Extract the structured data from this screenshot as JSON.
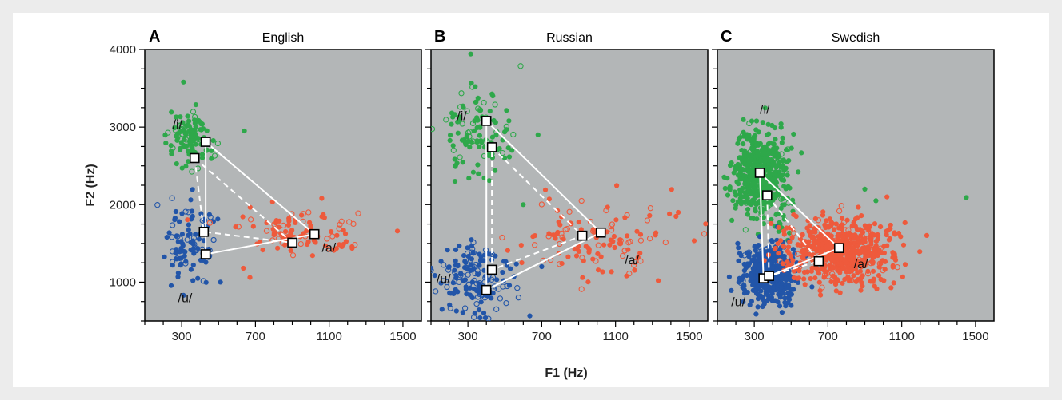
{
  "chart_data": {
    "type": "scatter",
    "shared": {
      "xlabel": "F1 (Hz)",
      "ylabel": "F2 (Hz)",
      "xlim": [
        100,
        1600
      ],
      "ylim": [
        500,
        4000
      ],
      "x_tick_labels": [
        "300",
        "700",
        "1100",
        "1500"
      ],
      "x_tick_values": [
        300,
        700,
        1100,
        1500
      ],
      "x_minor_ticks": [
        100,
        200,
        300,
        400,
        500,
        600,
        700,
        800,
        900,
        1000,
        1100,
        1200,
        1300,
        1400,
        1500
      ],
      "y_tick_labels": [
        "1000",
        "2000",
        "3000",
        "4000"
      ],
      "y_tick_values": [
        1000,
        2000,
        3000,
        4000
      ],
      "y_minor_ticks": [
        500,
        750,
        1000,
        1250,
        1500,
        1750,
        2000,
        2250,
        2500,
        2750,
        3000,
        3250,
        3500,
        3750,
        4000
      ],
      "colors": {
        "i": "#2ea84a",
        "u": "#2255a8",
        "a": "#ee5a3c"
      },
      "grid": false,
      "background": "#b3b6b7"
    },
    "panels": [
      {
        "letter": "A",
        "title": "English",
        "vowel_labels": [
          {
            "text": "/i/",
            "x": 250,
            "y": 2980
          },
          {
            "text": "/u/",
            "x": 280,
            "y": 740
          },
          {
            "text": "/a/",
            "x": 1060,
            "y": 1390
          }
        ],
        "clusters": [
          {
            "vowel": "i",
            "count": 110,
            "filled_ratio": 0.75,
            "mean": [
              340,
              2820
            ],
            "sd": [
              60,
              190
            ],
            "outliers": [
              [
                310,
                3580
              ],
              [
                640,
                2950
              ],
              [
                270,
                3130
              ]
            ]
          },
          {
            "vowel": "u",
            "count": 100,
            "filled_ratio": 0.7,
            "mean": [
              360,
              1500
            ],
            "sd": [
              65,
              260
            ],
            "outliers": [
              [
                310,
                830
              ],
              [
                270,
                1300
              ],
              [
                510,
                1000
              ]
            ]
          },
          {
            "vowel": "a",
            "count": 100,
            "filled_ratio": 0.7,
            "mean": [
              930,
              1600
            ],
            "sd": [
              150,
              140
            ],
            "outliers": [
              [
                1470,
                1660
              ],
              [
                670,
                1060
              ],
              [
                1060,
                2080
              ]
            ]
          }
        ],
        "means": {
          "solid": {
            "i": [
              430,
              2810
            ],
            "u": [
              430,
              1360
            ],
            "a": [
              1020,
              1620
            ]
          },
          "dashed": {
            "i": [
              370,
              2600
            ],
            "u": [
              420,
              1650
            ],
            "a": [
              900,
              1510
            ]
          }
        }
      },
      {
        "letter": "B",
        "title": "Russian",
        "vowel_labels": [
          {
            "text": "/i/",
            "x": 240,
            "y": 3090
          },
          {
            "text": "/u/",
            "x": 130,
            "y": 990
          },
          {
            "text": "/a/",
            "x": 1150,
            "y": 1230
          }
        ],
        "clusters": [
          {
            "vowel": "i",
            "count": 110,
            "filled_ratio": 0.75,
            "mean": [
              350,
              2950
            ],
            "sd": [
              95,
              300
            ],
            "outliers": [
              [
                680,
                2900
              ],
              [
                600,
                2000
              ],
              [
                230,
                2300
              ]
            ]
          },
          {
            "vowel": "u",
            "count": 160,
            "filled_ratio": 0.6,
            "mean": [
              340,
              1050
            ],
            "sd": [
              110,
              260
            ],
            "outliers": [
              [
                700,
                1200
              ],
              [
                160,
                650
              ]
            ]
          },
          {
            "vowel": "a",
            "count": 120,
            "filled_ratio": 0.65,
            "mean": [
              960,
              1550
            ],
            "sd": [
              200,
              220
            ],
            "outliers": [
              [
                1440,
                1900
              ],
              [
                1160,
                1080
              ],
              [
                720,
                2190
              ]
            ]
          }
        ],
        "means": {
          "solid": {
            "i": [
              400,
              3080
            ],
            "u": [
              400,
              900
            ],
            "a": [
              1020,
              1640
            ]
          },
          "dashed": {
            "i": [
              430,
              2740
            ],
            "u": [
              430,
              1160
            ],
            "a": [
              920,
              1600
            ]
          }
        }
      },
      {
        "letter": "C",
        "title": "Swedish",
        "vowel_labels": [
          {
            "text": "/i/",
            "x": 330,
            "y": 3170
          },
          {
            "text": "/u/",
            "x": 175,
            "y": 690
          },
          {
            "text": "/a/",
            "x": 840,
            "y": 1180
          }
        ],
        "clusters": [
          {
            "vowel": "i",
            "count": 520,
            "filled_ratio": 0.92,
            "mean": [
              340,
              2400
            ],
            "sd": [
              70,
              300
            ],
            "outliers": [
              [
                1450,
                2090
              ],
              [
                900,
                2200
              ],
              [
                960,
                2050
              ]
            ]
          },
          {
            "vowel": "u",
            "count": 460,
            "filled_ratio": 0.9,
            "mean": [
              380,
              1120
            ],
            "sd": [
              70,
              200
            ],
            "outliers": [
              [
                210,
                1500
              ],
              [
                500,
                700
              ]
            ]
          },
          {
            "vowel": "a",
            "count": 620,
            "filled_ratio": 0.9,
            "mean": [
              770,
              1400
            ],
            "sd": [
              140,
              200
            ],
            "outliers": [
              [
                1110,
                1480
              ],
              [
                1020,
                2100
              ]
            ]
          }
        ],
        "means": {
          "solid": {
            "i": [
              330,
              2410
            ],
            "u": [
              350,
              1050
            ],
            "a": [
              760,
              1440
            ]
          },
          "dashed": {
            "i": [
              370,
              2120
            ],
            "u": [
              380,
              1080
            ],
            "a": [
              650,
              1270
            ]
          }
        }
      }
    ]
  }
}
